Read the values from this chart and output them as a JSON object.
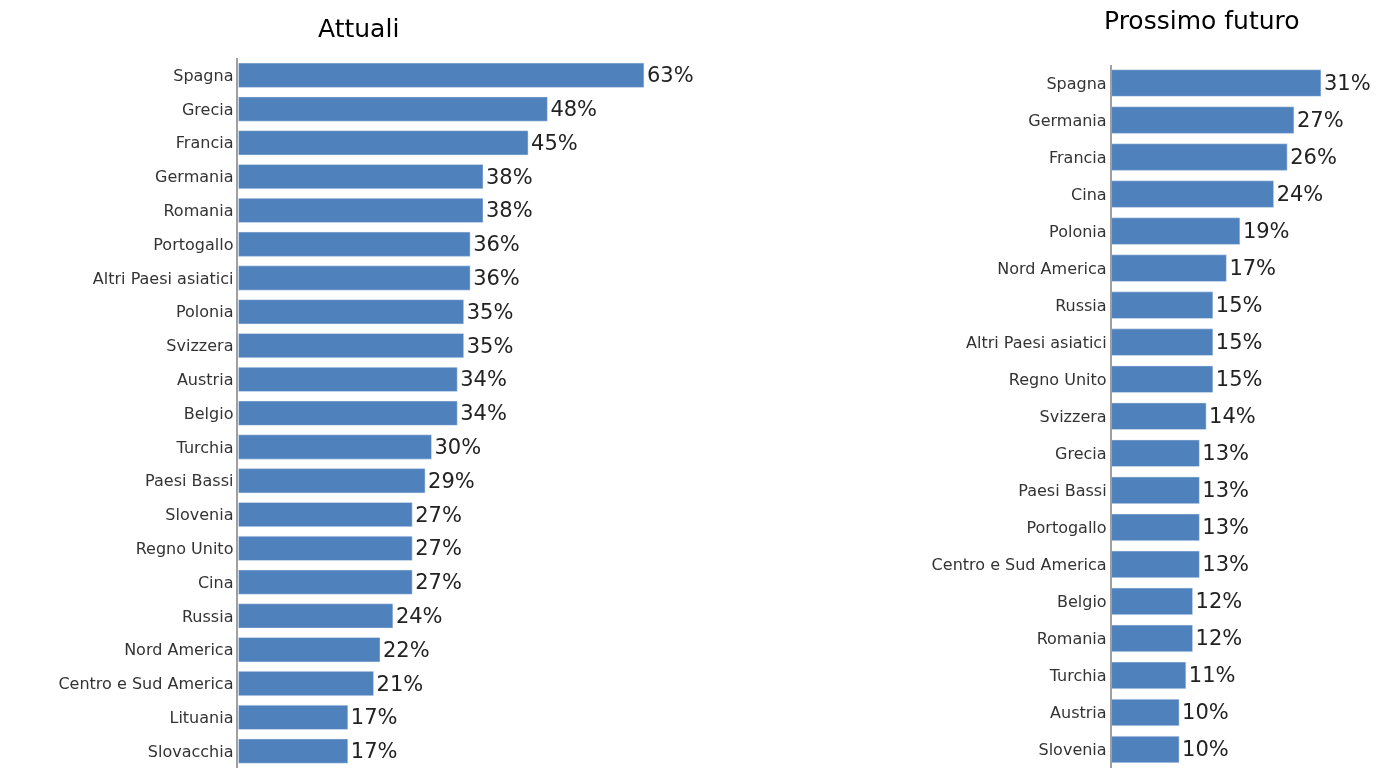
{
  "chart_data": [
    {
      "type": "bar",
      "orientation": "horizontal",
      "title": "Attuali",
      "color": "#4f81bd",
      "categories": [
        "Spagna",
        "Grecia",
        "Francia",
        "Germania",
        "Romania",
        "Portogallo",
        "Altri Paesi asiatici",
        "Polonia",
        "Svizzera",
        "Austria",
        "Belgio",
        "Turchia",
        "Paesi Bassi",
        "Slovenia",
        "Regno Unito",
        "Cina",
        "Russia",
        "Nord America",
        "Centro e Sud America",
        "Lituania",
        "Slovacchia"
      ],
      "values": [
        63,
        48,
        45,
        38,
        38,
        36,
        36,
        35,
        35,
        34,
        34,
        30,
        29,
        27,
        27,
        27,
        24,
        22,
        21,
        17,
        17
      ],
      "value_labels": [
        "63%",
        "48%",
        "45%",
        "38%",
        "38%",
        "36%",
        "36%",
        "35%",
        "35%",
        "34%",
        "34%",
        "30%",
        "29%",
        "27%",
        "27%",
        "27%",
        "24%",
        "22%",
        "21%",
        "17%",
        "17%"
      ]
    },
    {
      "type": "bar",
      "orientation": "horizontal",
      "title": "Prossimo futuro",
      "color": "#4f81bd",
      "categories": [
        "Spagna",
        "Germania",
        "Francia",
        "Cina",
        "Polonia",
        "Nord America",
        "Russia",
        "Altri Paesi asiatici",
        "Regno Unito",
        "Svizzera",
        "Grecia",
        "Paesi Bassi",
        "Portogallo",
        "Centro e Sud America",
        "Belgio",
        "Romania",
        "Turchia",
        "Austria",
        "Slovenia"
      ],
      "values": [
        31,
        27,
        26,
        24,
        19,
        17,
        15,
        15,
        15,
        14,
        13,
        13,
        13,
        13,
        12,
        12,
        11,
        10,
        10
      ],
      "value_labels": [
        "31%",
        "27%",
        "26%",
        "24%",
        "19%",
        "17%",
        "15%",
        "15%",
        "15%",
        "14%",
        "13%",
        "13%",
        "13%",
        "13%",
        "12%",
        "12%",
        "11%",
        "10%",
        "10%"
      ]
    }
  ]
}
